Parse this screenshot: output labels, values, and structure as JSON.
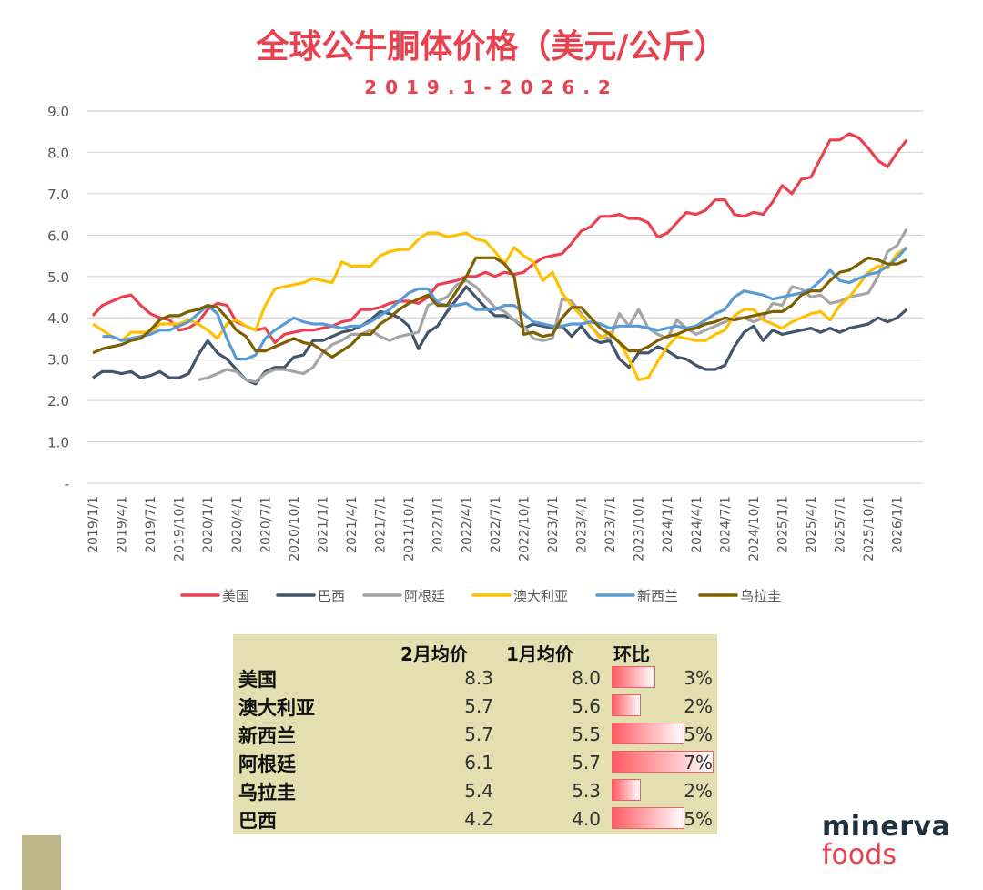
{
  "title": "全球公牛胴体价格（美元/公斤）",
  "subtitle": "2019.1-2026.2",
  "chart_data": {
    "type": "line",
    "title": "全球公牛胴体价格（美元/公斤）",
    "subtitle": "2019.1-2026.2",
    "x_start": "2019/1/1",
    "x_end": "2026/2/1",
    "x_frequency": "monthly",
    "ylim": [
      0,
      9
    ],
    "yticks": [
      "-",
      "1.0",
      "2.0",
      "3.0",
      "4.0",
      "5.0",
      "6.0",
      "7.0",
      "8.0",
      "9.0"
    ],
    "xticks": [
      "2019/1/1",
      "2019/4/1",
      "2019/7/1",
      "2019/10/1",
      "2020/1/1",
      "2020/4/1",
      "2020/7/1",
      "2020/10/1",
      "2021/1/1",
      "2021/4/1",
      "2021/7/1",
      "2021/10/1",
      "2022/1/1",
      "2022/4/1",
      "2022/7/1",
      "2022/10/1",
      "2023/1/1",
      "2023/4/1",
      "2023/7/1",
      "2023/10/1",
      "2024/1/1",
      "2024/4/1",
      "2024/7/1",
      "2024/10/1",
      "2025/1/1",
      "2025/4/1",
      "2025/7/1",
      "2025/10/1",
      "2026/1/1"
    ],
    "grid": true,
    "legend": "bottom",
    "series": [
      {
        "name": "美国",
        "color": "#e8414f",
        "values": [
          4.05,
          4.3,
          4.4,
          4.5,
          4.55,
          4.3,
          4.1,
          4.0,
          3.95,
          3.7,
          3.75,
          3.9,
          4.2,
          4.35,
          4.3,
          3.9,
          3.8,
          3.7,
          3.75,
          3.4,
          3.6,
          3.65,
          3.7,
          3.7,
          3.75,
          3.8,
          3.9,
          3.95,
          4.2,
          4.2,
          4.25,
          4.35,
          4.4,
          4.4,
          4.35,
          4.5,
          4.8,
          4.85,
          4.9,
          5.0,
          5.0,
          5.1,
          5.0,
          5.1,
          5.05,
          5.1,
          5.3,
          5.45,
          5.5,
          5.55,
          5.8,
          6.1,
          6.2,
          6.45,
          6.45,
          6.5,
          6.4,
          6.4,
          6.3,
          5.95,
          6.05,
          6.3,
          6.55,
          6.5,
          6.6,
          6.85,
          6.85,
          6.5,
          6.45,
          6.55,
          6.5,
          6.8,
          7.2,
          7.0,
          7.35,
          7.4,
          7.85,
          8.3,
          8.3,
          8.45,
          8.35,
          8.1,
          7.8,
          7.65,
          8.0,
          8.3
        ]
      },
      {
        "name": "巴西",
        "color": "#44546a",
        "values": [
          2.55,
          2.7,
          2.7,
          2.65,
          2.7,
          2.55,
          2.6,
          2.7,
          2.55,
          2.55,
          2.65,
          3.1,
          3.45,
          3.15,
          3.0,
          2.75,
          2.5,
          2.4,
          2.7,
          2.8,
          2.8,
          3.05,
          3.1,
          3.45,
          3.45,
          3.55,
          3.65,
          3.7,
          3.8,
          3.95,
          4.15,
          4.1,
          4.0,
          3.8,
          3.25,
          3.65,
          3.8,
          4.15,
          4.45,
          4.75,
          4.5,
          4.25,
          4.05,
          4.05,
          3.95,
          3.75,
          3.85,
          3.8,
          3.75,
          3.8,
          3.55,
          3.8,
          3.5,
          3.4,
          3.45,
          3.0,
          2.8,
          3.15,
          3.15,
          3.3,
          3.2,
          3.05,
          3.0,
          2.85,
          2.75,
          2.75,
          2.85,
          3.3,
          3.65,
          3.8,
          3.45,
          3.7,
          3.6,
          3.65,
          3.7,
          3.75,
          3.65,
          3.75,
          3.65,
          3.75,
          3.8,
          3.85,
          4.0,
          3.9,
          4.0,
          4.2
        ]
      },
      {
        "name": "阿根廷",
        "color": "#a5a5a5",
        "values": [
          null,
          null,
          null,
          null,
          null,
          null,
          null,
          null,
          null,
          null,
          null,
          2.5,
          2.55,
          2.65,
          2.75,
          2.7,
          2.5,
          2.45,
          2.65,
          2.75,
          2.75,
          2.7,
          2.65,
          2.8,
          3.15,
          3.35,
          3.45,
          3.6,
          3.6,
          3.7,
          3.55,
          3.45,
          3.55,
          3.6,
          3.65,
          4.3,
          4.4,
          4.5,
          4.8,
          4.9,
          4.75,
          4.5,
          4.25,
          4.15,
          3.95,
          3.8,
          3.5,
          3.45,
          3.5,
          4.45,
          4.4,
          4.1,
          3.8,
          3.55,
          3.5,
          4.1,
          3.8,
          4.2,
          3.75,
          3.6,
          3.5,
          3.95,
          3.75,
          3.6,
          3.7,
          3.8,
          3.9,
          4.0,
          4.0,
          3.9,
          4.0,
          4.35,
          4.3,
          4.75,
          4.7,
          4.5,
          4.55,
          4.35,
          4.4,
          4.5,
          4.55,
          4.6,
          5.0,
          5.6,
          5.75,
          6.15
        ]
      },
      {
        "name": "澳大利亚",
        "color": "#ffc000",
        "values": [
          3.85,
          3.7,
          3.55,
          3.45,
          3.65,
          3.65,
          3.65,
          3.85,
          3.85,
          3.85,
          3.95,
          3.85,
          3.7,
          3.5,
          3.85,
          3.95,
          3.8,
          3.7,
          4.3,
          4.7,
          4.75,
          4.8,
          4.85,
          4.95,
          4.9,
          4.85,
          5.35,
          5.25,
          5.25,
          5.25,
          5.5,
          5.6,
          5.65,
          5.65,
          5.9,
          6.05,
          6.05,
          5.95,
          6.0,
          6.05,
          5.9,
          5.85,
          5.6,
          5.3,
          5.7,
          5.5,
          5.35,
          4.9,
          5.1,
          4.6,
          4.3,
          4.05,
          3.8,
          3.5,
          3.65,
          3.4,
          3.0,
          2.5,
          2.55,
          2.95,
          3.3,
          3.55,
          3.5,
          3.45,
          3.45,
          3.6,
          3.7,
          4.05,
          4.2,
          4.2,
          3.95,
          3.85,
          3.75,
          3.9,
          4.0,
          4.1,
          4.15,
          3.95,
          4.3,
          4.5,
          4.8,
          5.1,
          5.25,
          5.2,
          5.55,
          5.7
        ]
      },
      {
        "name": "新西兰",
        "color": "#5b9bd5",
        "values": [
          null,
          3.55,
          3.55,
          3.45,
          3.5,
          3.55,
          3.6,
          3.7,
          3.7,
          3.8,
          3.9,
          4.1,
          4.3,
          4.1,
          3.5,
          3.0,
          3.0,
          3.1,
          3.5,
          3.7,
          3.85,
          4.0,
          3.9,
          3.85,
          3.85,
          3.8,
          3.75,
          3.8,
          3.8,
          3.9,
          4.05,
          4.2,
          4.4,
          4.6,
          4.7,
          4.7,
          4.35,
          4.3,
          4.3,
          4.35,
          4.2,
          4.2,
          4.2,
          4.3,
          4.3,
          4.1,
          3.9,
          3.85,
          3.8,
          3.8,
          3.85,
          3.85,
          3.9,
          3.85,
          3.75,
          3.8,
          3.8,
          3.8,
          3.75,
          3.7,
          3.75,
          3.8,
          3.75,
          3.8,
          3.95,
          4.1,
          4.2,
          4.5,
          4.65,
          4.6,
          4.55,
          4.45,
          4.5,
          4.55,
          4.6,
          4.7,
          4.9,
          5.15,
          4.9,
          4.85,
          4.95,
          5.05,
          5.1,
          5.25,
          5.45,
          5.7
        ]
      },
      {
        "name": "乌拉圭",
        "color": "#7f6000",
        "values": [
          3.15,
          3.25,
          3.3,
          3.35,
          3.45,
          3.5,
          3.7,
          3.95,
          4.05,
          4.05,
          4.15,
          4.2,
          4.3,
          4.25,
          4.0,
          3.7,
          3.55,
          3.2,
          3.2,
          3.3,
          3.4,
          3.5,
          3.4,
          3.35,
          3.2,
          3.05,
          3.2,
          3.35,
          3.6,
          3.6,
          3.85,
          4.0,
          4.2,
          4.35,
          4.45,
          4.55,
          4.3,
          4.3,
          4.65,
          5.0,
          5.45,
          5.45,
          5.45,
          5.3,
          5.0,
          3.6,
          3.65,
          3.55,
          3.6,
          4.0,
          4.25,
          4.25,
          4.0,
          3.75,
          3.6,
          3.4,
          3.2,
          3.2,
          3.3,
          3.45,
          3.55,
          3.6,
          3.7,
          3.75,
          3.85,
          3.9,
          4.0,
          3.95,
          4.0,
          4.05,
          4.1,
          4.15,
          4.15,
          4.3,
          4.55,
          4.65,
          4.65,
          4.9,
          5.1,
          5.15,
          5.3,
          5.45,
          5.4,
          5.3,
          5.3,
          5.4
        ]
      }
    ]
  },
  "table": {
    "headers": [
      "",
      "2月均价",
      "1月均价",
      "环比"
    ],
    "rows": [
      {
        "name": "美国",
        "feb": "8.3",
        "jan": "8.0",
        "change": "3%",
        "change_value": 3
      },
      {
        "name": "澳大利亚",
        "feb": "5.7",
        "jan": "5.6",
        "change": "2%",
        "change_value": 2
      },
      {
        "name": "新西兰",
        "feb": "5.7",
        "jan": "5.5",
        "change": "5%",
        "change_value": 5
      },
      {
        "name": "阿根廷",
        "feb": "6.1",
        "jan": "5.7",
        "change": "7%",
        "change_value": 7
      },
      {
        "name": "乌拉圭",
        "feb": "5.4",
        "jan": "5.3",
        "change": "2%",
        "change_value": 2
      },
      {
        "name": "巴西",
        "feb": "4.2",
        "jan": "4.0",
        "change": "5%",
        "change_value": 5
      }
    ],
    "bar_color": "#ff5a62",
    "background": "#e3dfb1"
  },
  "logo": {
    "line1": "minerva",
    "line2": "foods",
    "colors": [
      "#22313f",
      "#e8414f"
    ]
  }
}
